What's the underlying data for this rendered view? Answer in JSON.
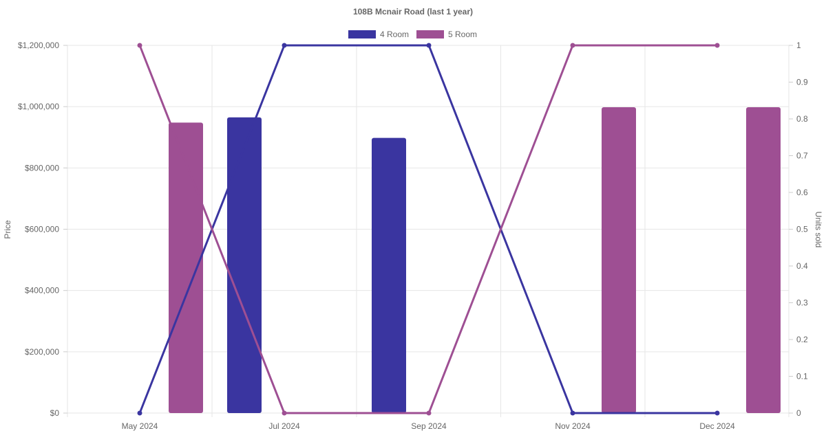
{
  "chart_data": {
    "type": "bar",
    "title": "108B Mcnair Road (last 1 year)",
    "categories": [
      "May 2024",
      "Jul 2024",
      "Sep 2024",
      "Nov 2024",
      "Dec 2024"
    ],
    "ylabel": "Price",
    "y2label": "Units sold",
    "ylim": [
      0,
      1200000
    ],
    "y2lim": [
      0,
      1
    ],
    "y_ticks": [
      "$0",
      "$200,000",
      "$400,000",
      "$600,000",
      "$800,000",
      "$1,000,000",
      "$1,200,000"
    ],
    "y2_ticks": [
      "0",
      "0.1",
      "0.2",
      "0.3",
      "0.4",
      "0.5",
      "0.6",
      "0.7",
      "0.8",
      "0.9",
      "1"
    ],
    "legend_position": "top-center",
    "grid": true,
    "series": [
      {
        "name": "4 Room",
        "color": "#3a35a0",
        "price": [
          null,
          965000,
          898000,
          null,
          null
        ],
        "units_sold": [
          0,
          1,
          1,
          0,
          0
        ]
      },
      {
        "name": "5 Room",
        "color": "#9e4f93",
        "price": [
          948000,
          null,
          null,
          998000,
          998000
        ],
        "units_sold": [
          1,
          0,
          0,
          1,
          1
        ]
      }
    ]
  }
}
